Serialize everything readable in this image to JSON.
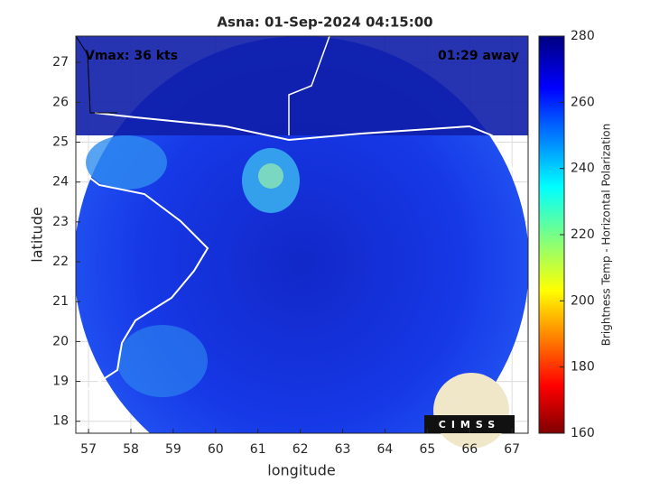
{
  "chart_data": {
    "type": "image",
    "title": "Asna: 01-Sep-2024 04:15:00",
    "xlabel": "longitude",
    "ylabel": "latitude",
    "annotations": [
      "Vmax: 36 kts",
      "01:29 away"
    ],
    "xlim": [
      56.7,
      67.38
    ],
    "xticks": [
      57,
      58,
      59,
      60,
      61,
      62,
      63,
      64,
      65,
      66,
      67
    ],
    "ylim": [
      17.7,
      27.66
    ],
    "yticks": [
      18,
      19,
      20,
      21,
      22,
      23,
      24,
      25,
      26,
      27
    ],
    "grid": true,
    "colorbar": {
      "label": "Brightness Temp - Horizontal Polarization",
      "lim": [
        160,
        280
      ],
      "ticks": [
        160,
        180,
        200,
        220,
        240,
        260,
        280
      ]
    },
    "logo": "CIMSS"
  }
}
